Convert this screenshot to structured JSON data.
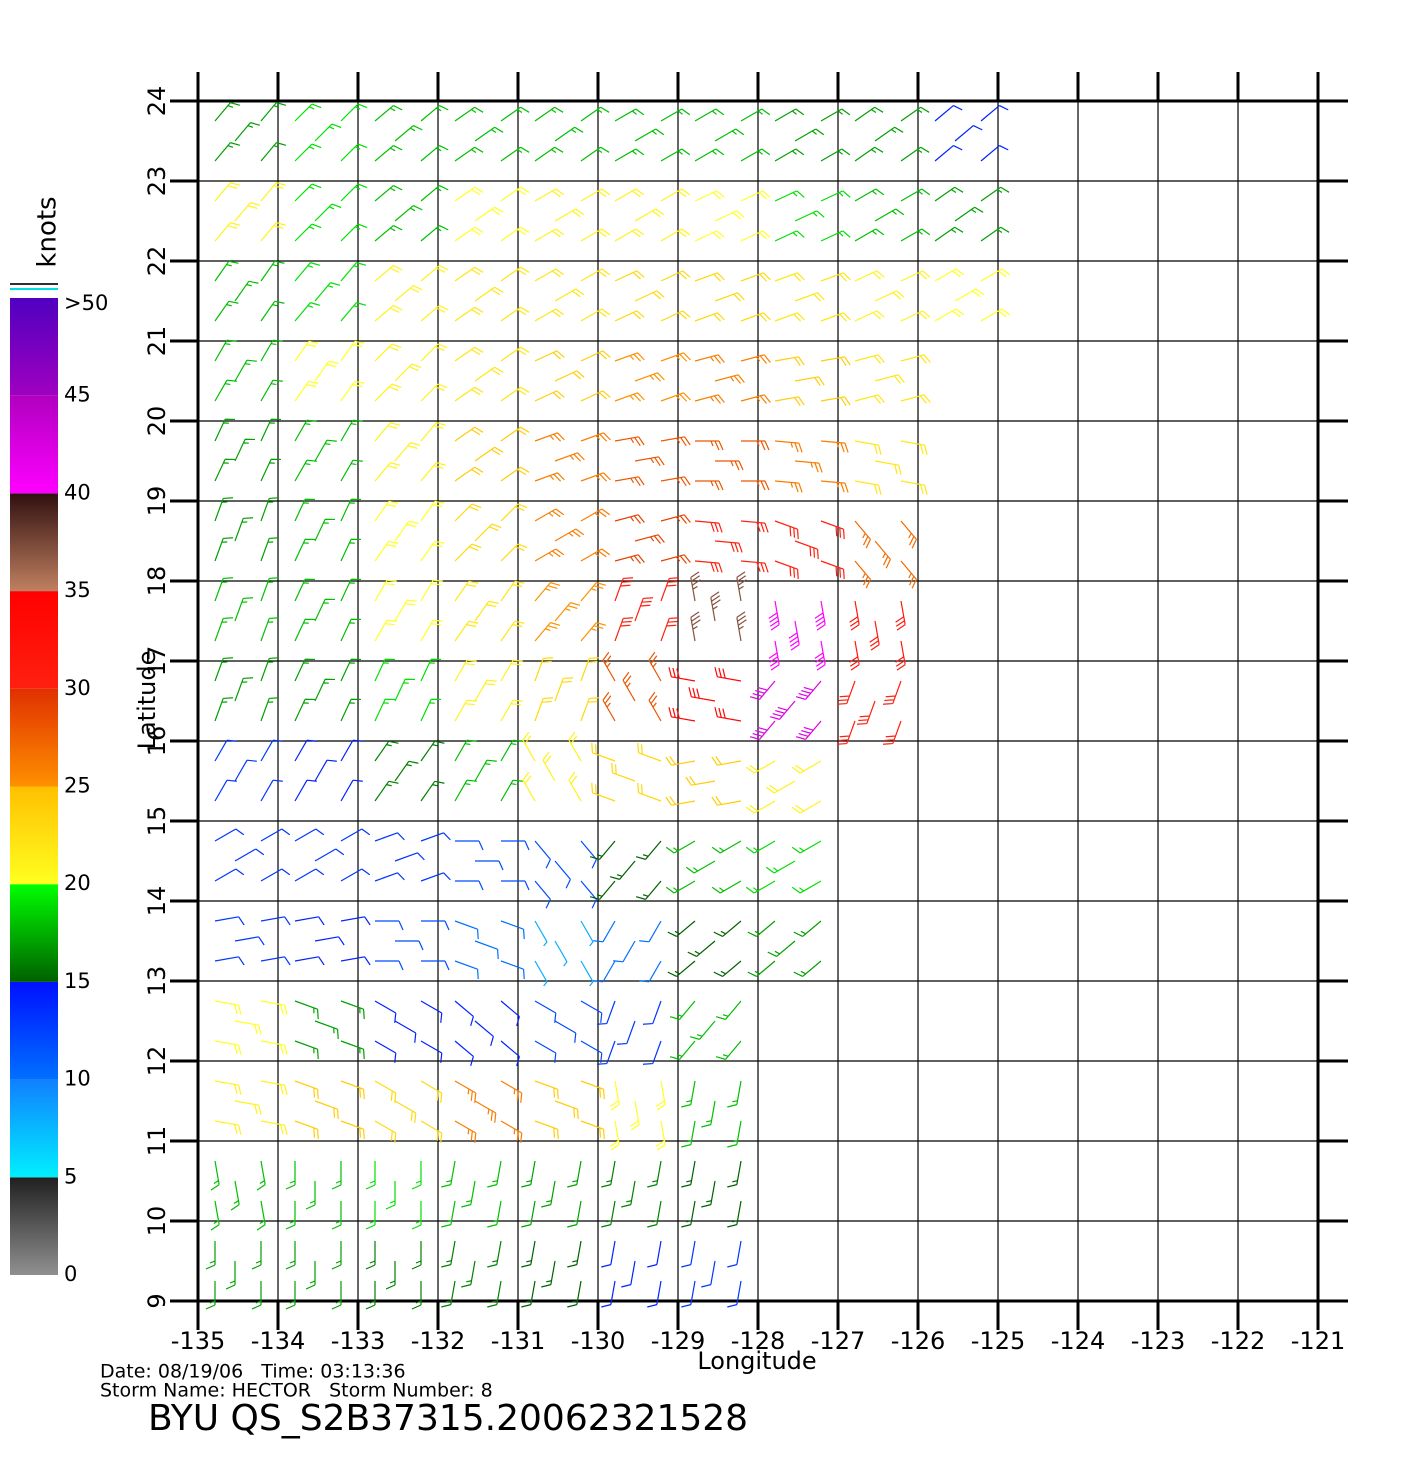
{
  "chart_data": {
    "type": "wind-barbs",
    "xlabel": "Longitude",
    "ylabel": "Latitude",
    "xlim": [
      -135,
      -121
    ],
    "ylim": [
      9,
      24
    ],
    "xticks": [
      -135,
      -134,
      -133,
      -132,
      -131,
      -130,
      -129,
      -128,
      -127,
      -126,
      -125,
      -124,
      -123,
      -122,
      -121
    ],
    "yticks": [
      9,
      10,
      11,
      12,
      13,
      14,
      15,
      16,
      17,
      18,
      19,
      20,
      21,
      22,
      23,
      24
    ],
    "lat_centers": [
      23.5,
      22.5,
      21.5,
      20.5,
      19.5,
      18.5,
      17.5,
      16.5,
      15.5,
      14.5,
      13.5,
      12.5,
      11.5,
      10.5,
      9.5
    ],
    "lon_centers": [
      -134.5,
      -133.5,
      -132.5,
      -131.5,
      -130.5,
      -129.5,
      -128.5,
      -127.5,
      -126.5,
      -125.5
    ],
    "speeds": [
      [
        17,
        19,
        18,
        18,
        18,
        18,
        18,
        17,
        17,
        14
      ],
      [
        21,
        19,
        18,
        20,
        21,
        21,
        20,
        19,
        18,
        17
      ],
      [
        18,
        19,
        21,
        22,
        22,
        23,
        23,
        22,
        21,
        20
      ],
      [
        18,
        20,
        21,
        22,
        24,
        25,
        26,
        24,
        22,
        null
      ],
      [
        17,
        18,
        21,
        24,
        26,
        28,
        28,
        26,
        22,
        null
      ],
      [
        17,
        18,
        20,
        23,
        26,
        29,
        30,
        30,
        27,
        null
      ],
      [
        18,
        18,
        20,
        22,
        25,
        30,
        37,
        40,
        31,
        null
      ],
      [
        17,
        17,
        19,
        21,
        23,
        28,
        34,
        42,
        30,
        null
      ],
      [
        13,
        14,
        16,
        18,
        21,
        23,
        24,
        21,
        null,
        null
      ],
      [
        13,
        13,
        13,
        12,
        12,
        15,
        18,
        19,
        null,
        null
      ],
      [
        13,
        14,
        12,
        10,
        8,
        10,
        15,
        17,
        null,
        null
      ],
      [
        20,
        17,
        14,
        14,
        12,
        13,
        18,
        null,
        null,
        null
      ],
      [
        21,
        24,
        23,
        26,
        24,
        20,
        18,
        null,
        null,
        null
      ],
      [
        18,
        18,
        19,
        18,
        17,
        16,
        15,
        null,
        null,
        null
      ],
      [
        17,
        17,
        16,
        16,
        15,
        14,
        13,
        null,
        null,
        null
      ]
    ],
    "directions": [
      [
        40,
        45,
        50,
        55,
        55,
        60,
        60,
        60,
        55,
        50
      ],
      [
        40,
        45,
        50,
        55,
        60,
        60,
        65,
        65,
        60,
        55
      ],
      [
        35,
        40,
        50,
        55,
        60,
        65,
        70,
        70,
        65,
        60
      ],
      [
        30,
        35,
        45,
        55,
        65,
        70,
        75,
        80,
        75,
        null
      ],
      [
        25,
        30,
        40,
        55,
        70,
        80,
        90,
        95,
        100,
        null
      ],
      [
        20,
        25,
        35,
        45,
        60,
        75,
        95,
        110,
        140,
        null
      ],
      [
        20,
        25,
        30,
        35,
        40,
        20,
        350,
        170,
        170,
        null
      ],
      [
        20,
        25,
        25,
        30,
        20,
        330,
        280,
        220,
        200,
        null
      ],
      [
        30,
        30,
        35,
        30,
        330,
        290,
        260,
        240,
        null,
        null
      ],
      [
        60,
        60,
        70,
        90,
        140,
        220,
        240,
        240,
        null,
        null
      ],
      [
        80,
        80,
        90,
        110,
        150,
        210,
        230,
        230,
        null,
        null
      ],
      [
        100,
        110,
        120,
        130,
        120,
        200,
        220,
        null,
        null,
        null
      ],
      [
        100,
        110,
        120,
        120,
        110,
        170,
        190,
        null,
        null,
        null
      ],
      [
        170,
        180,
        180,
        190,
        190,
        190,
        190,
        null,
        null,
        null
      ],
      [
        180,
        180,
        180,
        190,
        190,
        190,
        190,
        null,
        null,
        null
      ]
    ],
    "colorbar": {
      "title": "knots",
      "ticks": [
        0,
        5,
        10,
        15,
        20,
        25,
        30,
        35,
        40,
        45,
        {
          "value": 50,
          "label": ">50"
        }
      ],
      "colors": [
        [
          "#909090",
          "#202020"
        ],
        [
          "#00f0ff",
          "#1080ff"
        ],
        [
          "#0070ff",
          "#0010ff"
        ],
        [
          "#006000",
          "#00ff00"
        ],
        [
          "#ffff20",
          "#ffc000"
        ],
        [
          "#ff9000",
          "#e03000"
        ],
        [
          "#ff2010",
          "#ff0000"
        ],
        [
          "#c08060",
          "#301010"
        ],
        [
          "#ff00ff",
          "#b000c0"
        ],
        [
          "#a000c0",
          "#5000c0"
        ]
      ]
    },
    "footer": {
      "date_line": "Date: 08/19/06   Time: 03:13:36",
      "storm_line": "Storm Name: HECTOR   Storm Number: 8",
      "file": "BYU QS_S2B37315.20062321528"
    }
  }
}
